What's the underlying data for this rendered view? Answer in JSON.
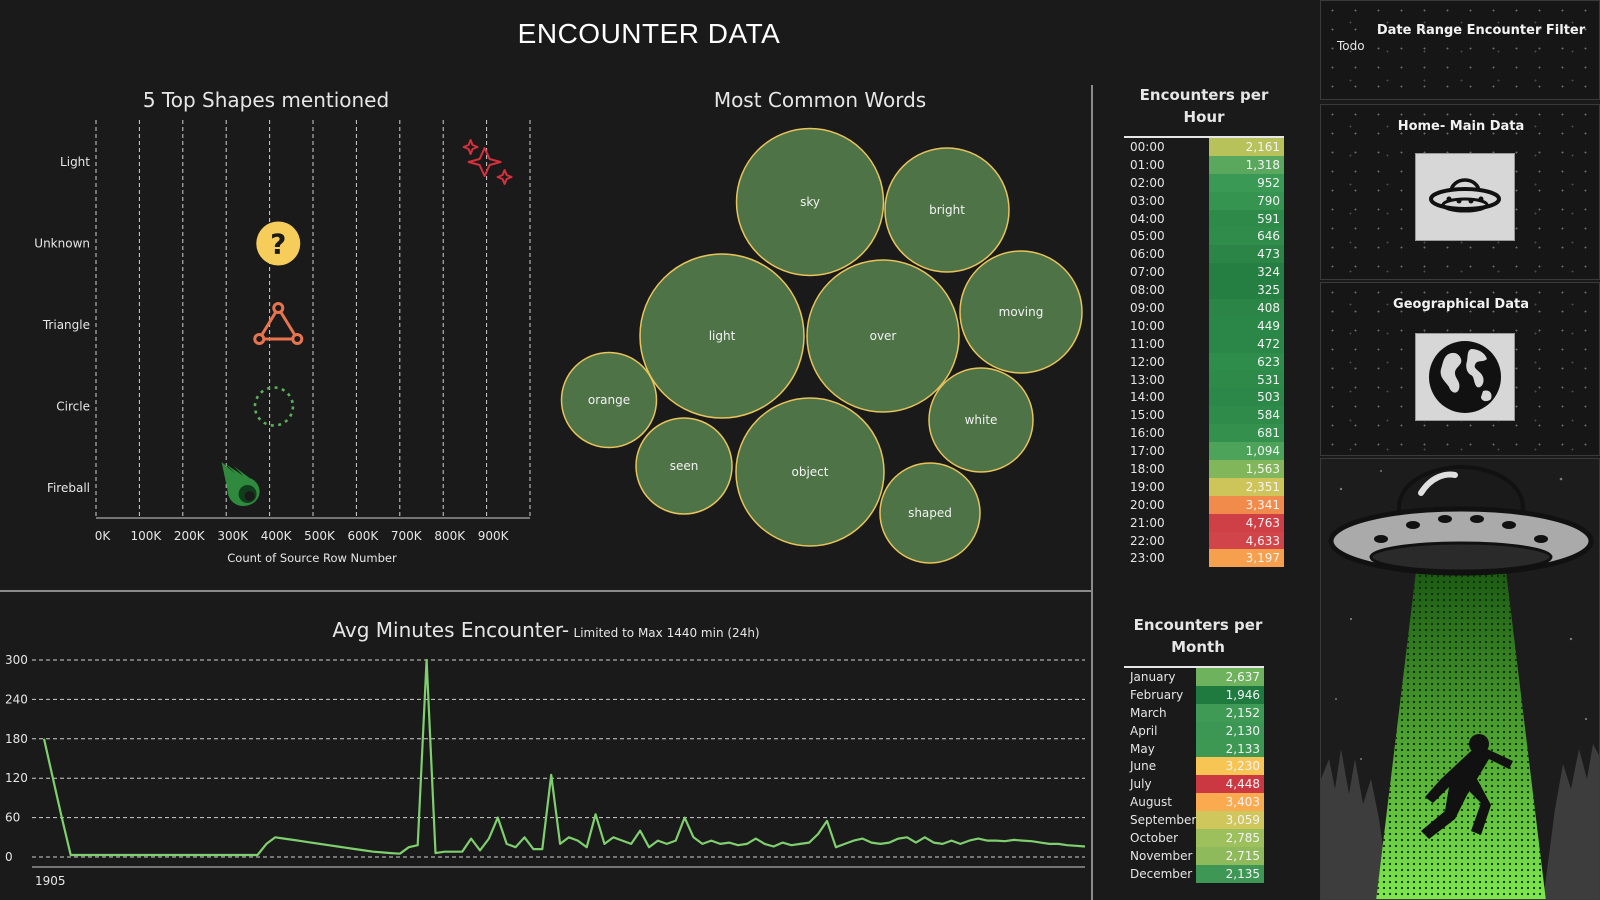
{
  "dashboard": {
    "title": "ENCOUNTER DATA"
  },
  "shapes_chart": {
    "title": "5 Top Shapes mentioned",
    "xlabel": "Count of Source Row Number",
    "x_ticks": [
      "0K",
      "100K",
      "200K",
      "300K",
      "400K",
      "500K",
      "600K",
      "700K",
      "800K",
      "900K"
    ]
  },
  "words_chart": {
    "title": "Most Common Words"
  },
  "minutes_chart": {
    "title": "Avg Minutes Encounter-",
    "subtitle": "Limited to Max 1440 min (24h)",
    "y_ticks": [
      "300",
      "240",
      "180",
      "120",
      "60",
      "0"
    ],
    "x_start_label": "1905"
  },
  "hour_table": {
    "title_line1": "Encounters per",
    "title_line2": "Hour"
  },
  "month_table": {
    "title_line1": "Encounters per",
    "title_line2": "Month"
  },
  "sidebar": {
    "filter_title": "Date Range Encounter Filter",
    "filter_value": "Todo",
    "home_label": "Home- Main Data",
    "geo_label": "Geographical Data"
  },
  "colors": {
    "bubble_fill": "#4e7347",
    "bubble_stroke": "#e8c35a",
    "line": "#7fcf6e",
    "light_icon": "#d6303c",
    "unknown_icon": "#f6cc5b",
    "triangle_icon": "#e8744f",
    "circle_icon": "#5cae5c",
    "fireball_icon": "#2f8a3e"
  },
  "chart_data": [
    {
      "type": "scatter",
      "title": "5 Top Shapes mentioned",
      "xlabel": "Count of Source Row Number",
      "ylabel": "",
      "categories": [
        "Light",
        "Unknown",
        "Triangle",
        "Circle",
        "Fireball"
      ],
      "values": [
        900000,
        420000,
        420000,
        410000,
        340000
      ],
      "xlim": [
        0,
        1000000
      ]
    },
    {
      "type": "bubble",
      "title": "Most Common Words",
      "words": [
        {
          "word": "sky",
          "weight": 147
        },
        {
          "word": "bright",
          "weight": 124
        },
        {
          "word": "light",
          "weight": 164
        },
        {
          "word": "over",
          "weight": 152
        },
        {
          "word": "moving",
          "weight": 122
        },
        {
          "word": "orange",
          "weight": 95
        },
        {
          "word": "white",
          "weight": 104
        },
        {
          "word": "seen",
          "weight": 96
        },
        {
          "word": "object",
          "weight": 148
        },
        {
          "word": "shaped",
          "weight": 100
        }
      ]
    },
    {
      "type": "line",
      "title": "Avg Minutes Encounter- Limited to Max 1440 min (24h)",
      "xlabel": "1905",
      "ylabel": "",
      "ylim": [
        0,
        300
      ],
      "y_ticks": [
        0,
        60,
        120,
        180,
        240,
        300
      ],
      "values": [
        180,
        120,
        60,
        3,
        3,
        3,
        3,
        3,
        3,
        3,
        3,
        3,
        3,
        3,
        3,
        3,
        3,
        3,
        3,
        3,
        3,
        3,
        3,
        3,
        3,
        20,
        30,
        28,
        26,
        24,
        22,
        20,
        18,
        16,
        14,
        12,
        10,
        8,
        7,
        6,
        5,
        15,
        18,
        300,
        6,
        8,
        8,
        8,
        28,
        10,
        28,
        60,
        20,
        15,
        30,
        12,
        12,
        125,
        20,
        30,
        25,
        15,
        65,
        20,
        30,
        25,
        20,
        40,
        15,
        25,
        20,
        25,
        60,
        30,
        20,
        25,
        20,
        22,
        18,
        20,
        28,
        20,
        16,
        22,
        18,
        20,
        22,
        35,
        55,
        15,
        20,
        25,
        28,
        22,
        20,
        22,
        28,
        30,
        22,
        30,
        22,
        20,
        25,
        20,
        25,
        28,
        25,
        25,
        24,
        26,
        25,
        24,
        22,
        20,
        20,
        18,
        17,
        16
      ]
    },
    {
      "type": "table",
      "title": "Encounters per Hour",
      "categories": [
        "00:00",
        "01:00",
        "02:00",
        "03:00",
        "04:00",
        "05:00",
        "06:00",
        "07:00",
        "08:00",
        "09:00",
        "10:00",
        "11:00",
        "12:00",
        "13:00",
        "14:00",
        "15:00",
        "16:00",
        "17:00",
        "18:00",
        "19:00",
        "20:00",
        "21:00",
        "22:00",
        "23:00"
      ],
      "values": [
        2161,
        1318,
        952,
        790,
        591,
        646,
        473,
        324,
        325,
        408,
        449,
        472,
        623,
        531,
        503,
        584,
        681,
        1094,
        1563,
        2351,
        3341,
        4763,
        4633,
        3197
      ],
      "labels": [
        "2,161",
        "1,318",
        "952",
        "790",
        "591",
        "646",
        "473",
        "324",
        "325",
        "408",
        "449",
        "472",
        "623",
        "531",
        "503",
        "584",
        "681",
        "1,094",
        "1,563",
        "2,351",
        "3,341",
        "4,763",
        "4,633",
        "3,197"
      ],
      "fills": [
        "#b7c35a",
        "#5aa85d",
        "#3a9a55",
        "#35944f",
        "#2d8a49",
        "#2f8c4a",
        "#2a8546",
        "#267f42",
        "#267f42",
        "#2a8546",
        "#2b8747",
        "#2b8747",
        "#2f8d4b",
        "#2d8a49",
        "#2c8848",
        "#2e8b4a",
        "#33904d",
        "#4da35a",
        "#82b65a",
        "#cdc55a",
        "#f08b4b",
        "#cf3f46",
        "#d1444a",
        "#f6a04e"
      ]
    },
    {
      "type": "table",
      "title": "Encounters per Month",
      "categories": [
        "January",
        "February",
        "March",
        "April",
        "May",
        "June",
        "July",
        "August",
        "September",
        "October",
        "November",
        "December"
      ],
      "values": [
        2637,
        1946,
        2152,
        2130,
        2133,
        3230,
        4448,
        3403,
        3059,
        2785,
        2715,
        2135
      ],
      "labels": [
        "2,637",
        "1,946",
        "2,152",
        "2,130",
        "2,133",
        "3,230",
        "4,448",
        "3,403",
        "3,059",
        "2,785",
        "2,715",
        "2,135"
      ],
      "fills": [
        "#6fb25e",
        "#1f7a40",
        "#3f9a55",
        "#3d9754",
        "#3d9854",
        "#f7c553",
        "#cc3841",
        "#fbaa4f",
        "#cfc75b",
        "#9dbf5c",
        "#8fba5b",
        "#3e9754"
      ]
    }
  ]
}
